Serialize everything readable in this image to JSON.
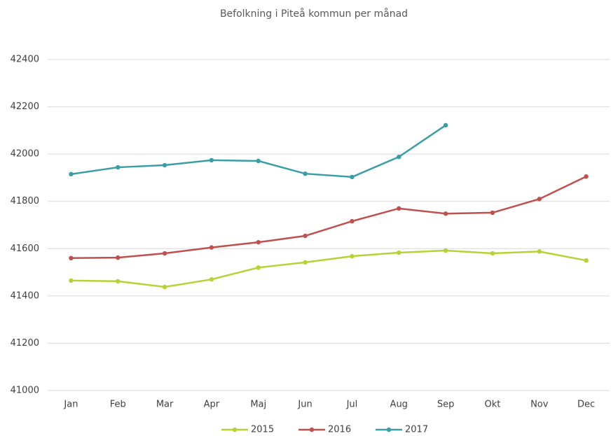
{
  "chart_data": {
    "type": "line",
    "title": "Befolkning  i Piteå kommun  per månad",
    "categories": [
      "Jan",
      "Feb",
      "Mar",
      "Apr",
      "Maj",
      "Jun",
      "Jul",
      "Aug",
      "Sep",
      "Okt",
      "Nov",
      "Dec"
    ],
    "series": [
      {
        "name": "2015",
        "color": "#b5d334",
        "values": [
          41465,
          41462,
          41438,
          41470,
          41520,
          41542,
          41568,
          41583,
          41592,
          41580,
          41588,
          41550
        ]
      },
      {
        "name": "2016",
        "color": "#c0504d",
        "values": [
          41560,
          41562,
          41580,
          41605,
          41627,
          41654,
          41716,
          41770,
          41748,
          41752,
          41810,
          41905
        ]
      },
      {
        "name": "2017",
        "color": "#3a9ea5",
        "values": [
          41915,
          41944,
          41953,
          41974,
          41971,
          41917,
          41903,
          41988,
          42122,
          null,
          null,
          null
        ]
      }
    ],
    "ylim": [
      41000,
      42500
    ],
    "yticks": [
      41000,
      41200,
      41400,
      41600,
      41800,
      42000,
      42200,
      42400
    ],
    "grid": true,
    "legend": "bottom"
  }
}
